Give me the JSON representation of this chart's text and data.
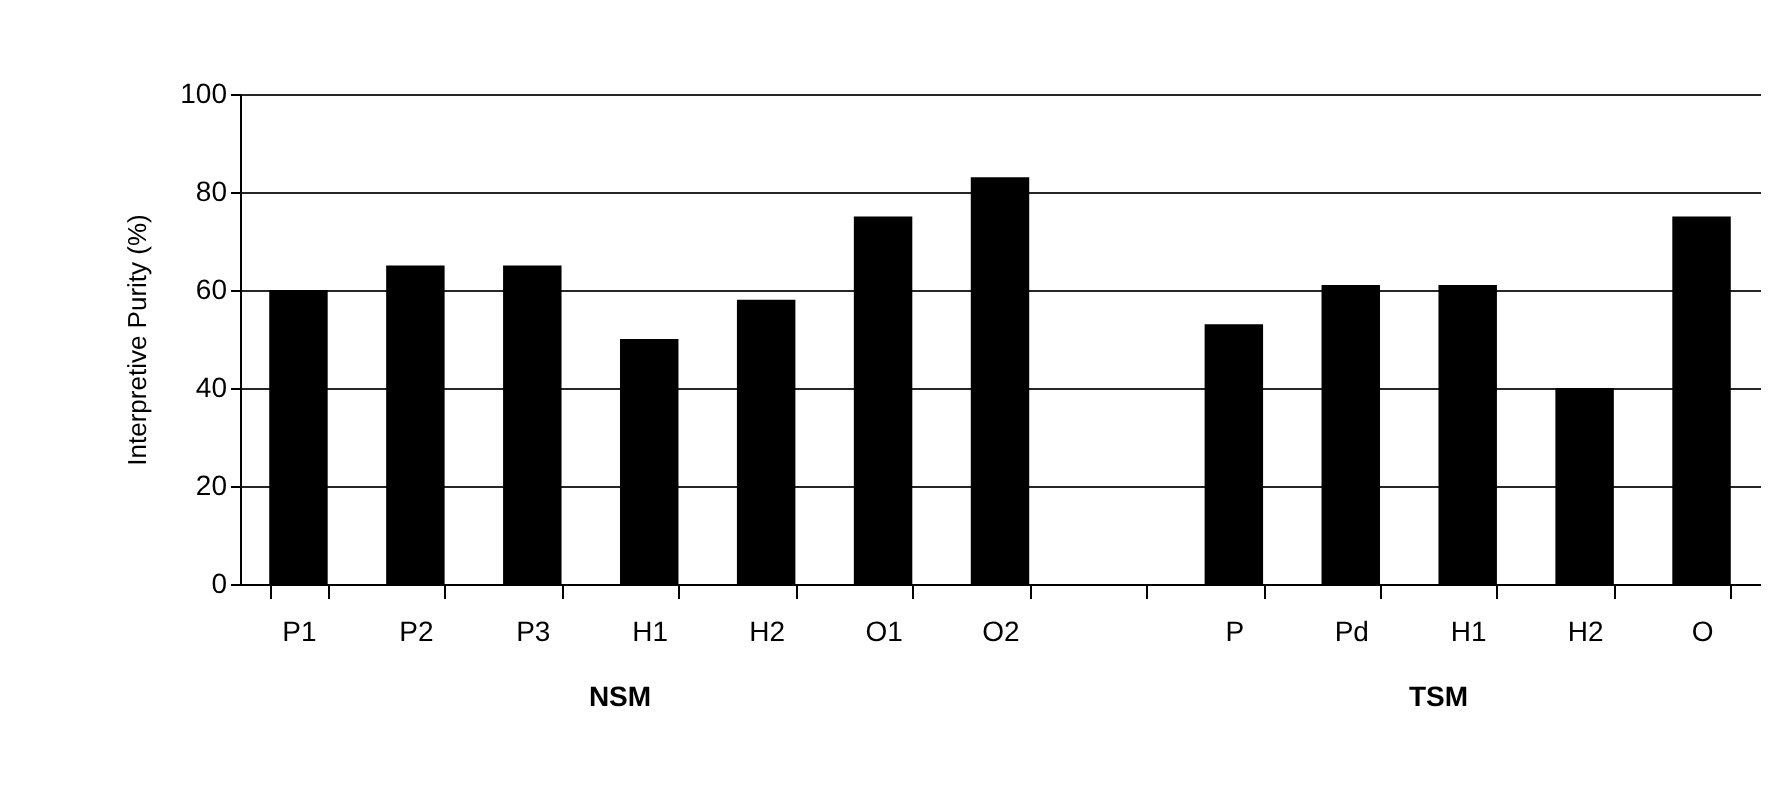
{
  "chart_data": {
    "type": "bar",
    "ylabel": "Interpretive Purity (%)",
    "categories": [
      "P1",
      "P2",
      "P3",
      "H1",
      "H2",
      "O1",
      "O2",
      null,
      "P",
      "Pd",
      "H1",
      "H2",
      "O"
    ],
    "values": [
      60,
      65,
      65,
      50,
      58,
      75,
      83,
      null,
      53,
      61,
      61,
      40,
      75
    ],
    "color": "#000000",
    "ylim": [
      0,
      100
    ],
    "yticks": [
      0,
      20,
      40,
      60,
      80,
      100
    ],
    "grid": "y",
    "annotations": [
      "NSM",
      "TSM"
    ]
  }
}
